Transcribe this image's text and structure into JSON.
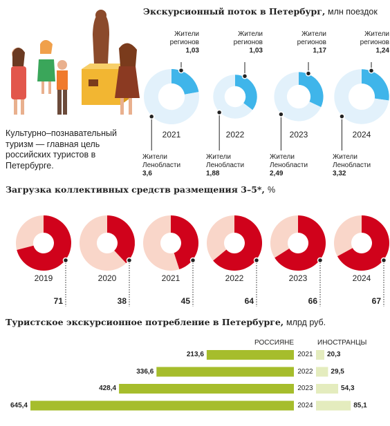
{
  "caption": "Культурно–познавательный туризм — главная цель российских туристов в Петербурге.",
  "chart_data": [
    {
      "type": "sized-donut",
      "title": "Экскурсионный поток в Петербург,",
      "unit": "млн поездок",
      "categories": [
        "2021",
        "2022",
        "2023",
        "2024"
      ],
      "series": [
        {
          "name": "Жители регионов",
          "color": "#3fb5ea",
          "values": [
            1.03,
            1.03,
            1.17,
            1.24
          ],
          "value_labels": [
            "1,03",
            "1,03",
            "1,17",
            "1,24"
          ]
        },
        {
          "name": "Жители Ленобласти",
          "color": "#e2f1fb",
          "values": [
            3.6,
            1.88,
            2.49,
            3.32
          ],
          "value_labels": [
            "3,6",
            "1,88",
            "2,49",
            "3,32"
          ]
        }
      ]
    },
    {
      "type": "percent-donut",
      "title": "Загрузка коллективных средств размещения 3–5*,",
      "unit": "%",
      "categories": [
        "2019",
        "2020",
        "2021",
        "2022",
        "2023",
        "2024"
      ],
      "values": [
        71,
        38,
        45,
        64,
        66,
        67
      ],
      "color": "#d0021b",
      "track_color": "#f9d6c9"
    },
    {
      "type": "mirror-bar",
      "title": "Туристское экскурсионное потребление в Петербурге,",
      "unit": "млрд руб.",
      "categories": [
        "2021",
        "2022",
        "2023",
        "2024"
      ],
      "series": [
        {
          "name": "РОССИЯНЕ",
          "color": "#a6bd2c",
          "values": [
            213.6,
            336.6,
            428.4,
            645.4
          ],
          "value_labels": [
            "213,6",
            "336,6",
            "428,4",
            "645,4"
          ]
        },
        {
          "name": "ИНОСТРАНЦЫ",
          "color": "#e4ecbe",
          "values": [
            20.3,
            29.5,
            54.3,
            85.1
          ],
          "value_labels": [
            "20,3",
            "29,5",
            "54,3",
            "85,1"
          ]
        }
      ]
    }
  ]
}
